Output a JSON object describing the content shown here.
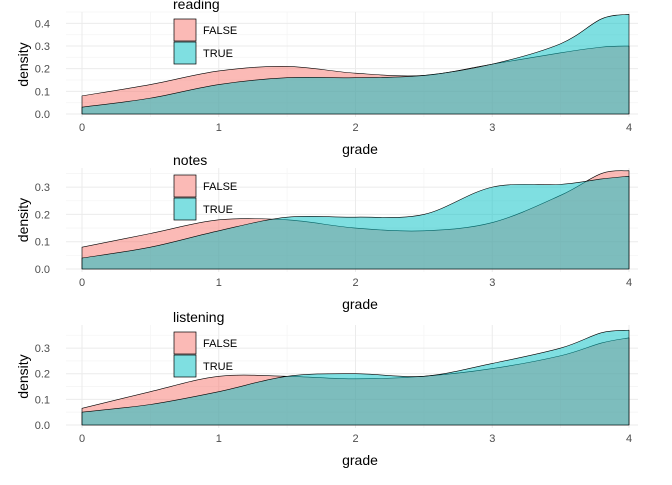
{
  "chart_data": [
    {
      "type": "area",
      "legend_title": "reading",
      "xlabel": "grade",
      "ylabel": "density",
      "xlim": [
        0,
        4
      ],
      "ylim": [
        0,
        0.45
      ],
      "x_ticks": [
        "0",
        "1",
        "2",
        "3",
        "4"
      ],
      "y_ticks": [
        "0.0",
        "0.1",
        "0.2",
        "0.3",
        "0.4"
      ],
      "y_tick_values": [
        0,
        0.1,
        0.2,
        0.3,
        0.4
      ],
      "legend_position": "top-left",
      "grid": true,
      "x": [
        0,
        0.5,
        1,
        1.5,
        2,
        2.5,
        3,
        3.5,
        3.8,
        4
      ],
      "series": [
        {
          "name": "FALSE",
          "color": "#F8766D",
          "values": [
            0.08,
            0.13,
            0.19,
            0.21,
            0.18,
            0.17,
            0.22,
            0.27,
            0.295,
            0.3
          ]
        },
        {
          "name": "TRUE",
          "color": "#00BFC4",
          "values": [
            0.03,
            0.07,
            0.13,
            0.16,
            0.16,
            0.17,
            0.22,
            0.31,
            0.42,
            0.44
          ]
        }
      ]
    },
    {
      "type": "area",
      "legend_title": "notes",
      "xlabel": "grade",
      "ylabel": "density",
      "xlim": [
        0,
        4
      ],
      "ylim": [
        0,
        0.37
      ],
      "x_ticks": [
        "0",
        "1",
        "2",
        "3",
        "4"
      ],
      "y_ticks": [
        "0.0",
        "0.1",
        "0.2",
        "0.3"
      ],
      "y_tick_values": [
        0,
        0.1,
        0.2,
        0.3
      ],
      "legend_position": "top-left",
      "grid": true,
      "x": [
        0,
        0.5,
        1,
        1.5,
        2,
        2.5,
        3,
        3.5,
        3.8,
        4
      ],
      "series": [
        {
          "name": "FALSE",
          "color": "#F8766D",
          "values": [
            0.08,
            0.13,
            0.18,
            0.18,
            0.15,
            0.14,
            0.17,
            0.27,
            0.35,
            0.36
          ]
        },
        {
          "name": "TRUE",
          "color": "#00BFC4",
          "values": [
            0.04,
            0.08,
            0.14,
            0.19,
            0.19,
            0.2,
            0.3,
            0.31,
            0.33,
            0.34
          ]
        }
      ]
    },
    {
      "type": "area",
      "legend_title": "listening",
      "xlabel": "grade",
      "ylabel": "density",
      "xlim": [
        0,
        4
      ],
      "ylim": [
        0,
        0.39
      ],
      "x_ticks": [
        "0",
        "1",
        "2",
        "3",
        "4"
      ],
      "y_ticks": [
        "0.0",
        "0.1",
        "0.2",
        "0.3"
      ],
      "y_tick_values": [
        0,
        0.1,
        0.2,
        0.3
      ],
      "legend_position": "top-left",
      "grid": true,
      "x": [
        0,
        0.5,
        1,
        1.5,
        2,
        2.5,
        3,
        3.5,
        3.8,
        4
      ],
      "series": [
        {
          "name": "FALSE",
          "color": "#F8766D",
          "values": [
            0.065,
            0.13,
            0.19,
            0.19,
            0.18,
            0.19,
            0.22,
            0.27,
            0.32,
            0.34
          ]
        },
        {
          "name": "TRUE",
          "color": "#00BFC4",
          "values": [
            0.05,
            0.08,
            0.13,
            0.19,
            0.2,
            0.19,
            0.24,
            0.3,
            0.36,
            0.37
          ]
        }
      ]
    }
  ]
}
